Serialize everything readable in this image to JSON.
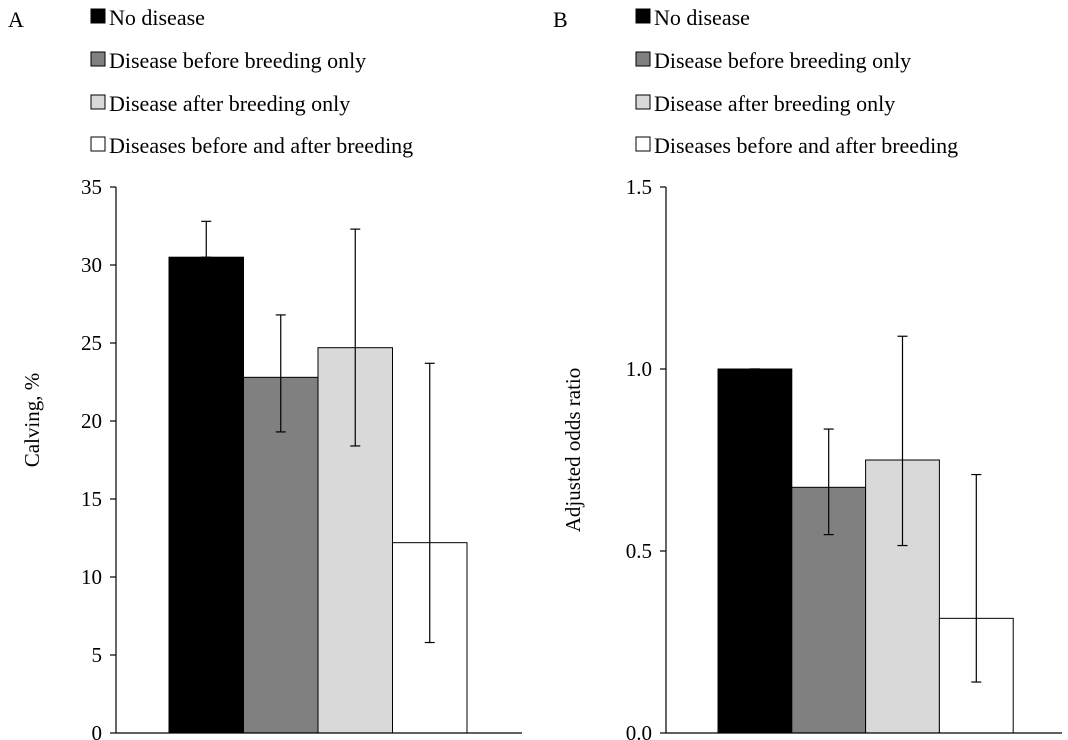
{
  "legend": [
    {
      "label": "No disease",
      "color": "#000000"
    },
    {
      "label": "Disease before breeding only",
      "color": "#808080"
    },
    {
      "label": "Disease after breeding only",
      "color": "#d9d9d9"
    },
    {
      "label": "Diseases before and after breeding",
      "color": "#ffffff"
    }
  ],
  "chart_data": [
    {
      "panel": "A",
      "type": "bar",
      "ylabel": "Calving, %",
      "ylim": [
        0,
        35
      ],
      "yticks": [
        0,
        5,
        10,
        15,
        20,
        25,
        30,
        35
      ],
      "ytick_labels": [
        "0",
        "5",
        "10",
        "15",
        "20",
        "25",
        "30",
        "35"
      ],
      "grid": false,
      "legend_position": "top",
      "series": [
        {
          "name": "No disease",
          "color": "#000000",
          "value": 30.5,
          "err_low": 30.5,
          "err_high": 32.8
        },
        {
          "name": "Disease before breeding only",
          "color": "#808080",
          "value": 22.8,
          "err_low": 19.3,
          "err_high": 26.8
        },
        {
          "name": "Disease after breeding only",
          "color": "#d9d9d9",
          "value": 24.7,
          "err_low": 18.4,
          "err_high": 32.3
        },
        {
          "name": "Diseases before and after breeding",
          "color": "#ffffff",
          "value": 12.2,
          "err_low": 5.8,
          "err_high": 23.7
        }
      ]
    },
    {
      "panel": "B",
      "type": "bar",
      "ylabel": "Adjusted odds ratio",
      "ylim": [
        0,
        1.5
      ],
      "yticks": [
        0,
        0.5,
        1.0,
        1.5
      ],
      "ytick_labels": [
        "0.0",
        "0.5",
        "1.0",
        "1.5"
      ],
      "grid": false,
      "legend_position": "top",
      "series": [
        {
          "name": "No disease",
          "color": "#000000",
          "value": 1.0,
          "err_low": 1.0,
          "err_high": 1.0
        },
        {
          "name": "Disease before breeding only",
          "color": "#808080",
          "value": 0.675,
          "err_low": 0.545,
          "err_high": 0.835
        },
        {
          "name": "Disease after breeding only",
          "color": "#d9d9d9",
          "value": 0.75,
          "err_low": 0.515,
          "err_high": 1.09
        },
        {
          "name": "Diseases before and after breeding",
          "color": "#ffffff",
          "value": 0.315,
          "err_low": 0.14,
          "err_high": 0.71
        }
      ]
    }
  ]
}
